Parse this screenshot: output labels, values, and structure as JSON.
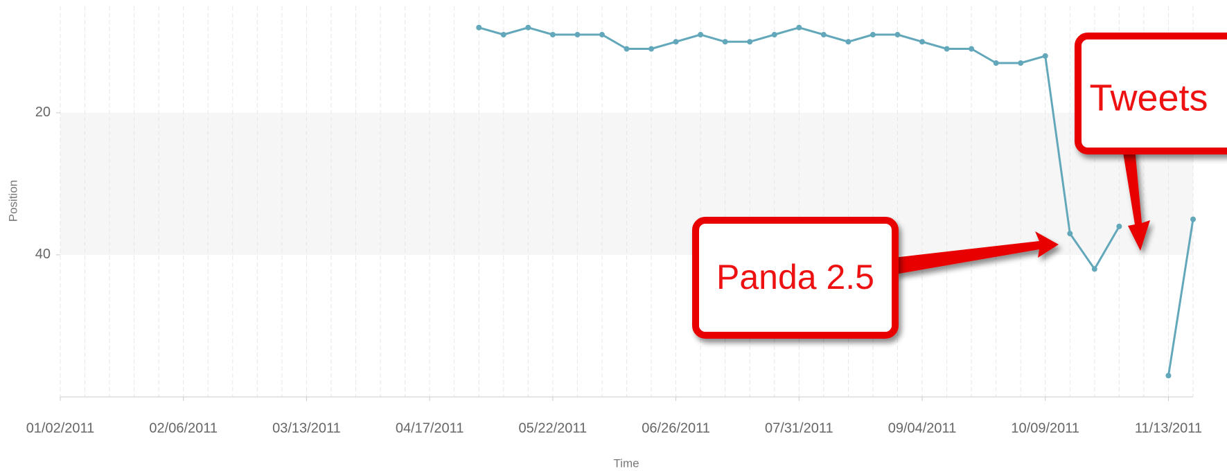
{
  "chart_data": {
    "type": "line",
    "x_label": "Time",
    "y_label": "Position",
    "x": [
      "05/01/2011",
      "05/08/2011",
      "05/15/2011",
      "05/22/2011",
      "05/29/2011",
      "06/05/2011",
      "06/12/2011",
      "06/19/2011",
      "06/26/2011",
      "07/03/2011",
      "07/10/2011",
      "07/17/2011",
      "07/24/2011",
      "07/31/2011",
      "08/07/2011",
      "08/14/2011",
      "08/21/2011",
      "08/28/2011",
      "09/04/2011",
      "09/11/2011",
      "09/18/2011",
      "09/25/2011",
      "10/02/2011",
      "10/09/2011",
      "10/16/2011",
      "10/23/2011",
      "10/30/2011",
      "11/06/2011",
      "11/13/2011",
      "11/20/2011"
    ],
    "values": [
      8,
      9,
      8,
      9,
      9,
      9,
      11,
      11,
      10,
      9,
      10,
      10,
      9,
      8,
      9,
      10,
      9,
      9,
      10,
      11,
      11,
      13,
      13,
      12,
      37,
      42,
      36,
      null,
      57,
      35
    ],
    "color": "#62a8ba",
    "xlim": [
      "01/02/2011",
      "11/20/2011"
    ],
    "xticks": [
      "01/02/2011",
      "02/06/2011",
      "03/13/2011",
      "04/17/2011",
      "05/22/2011",
      "06/26/2011",
      "07/31/2011",
      "09/04/2011",
      "10/09/2011",
      "11/13/2011"
    ],
    "ylim": [
      5,
      60
    ],
    "y_inverted": true,
    "yticks": [
      20,
      40
    ],
    "grid": true,
    "annotations": [
      "Panda 2.5",
      "Tweets"
    ]
  }
}
